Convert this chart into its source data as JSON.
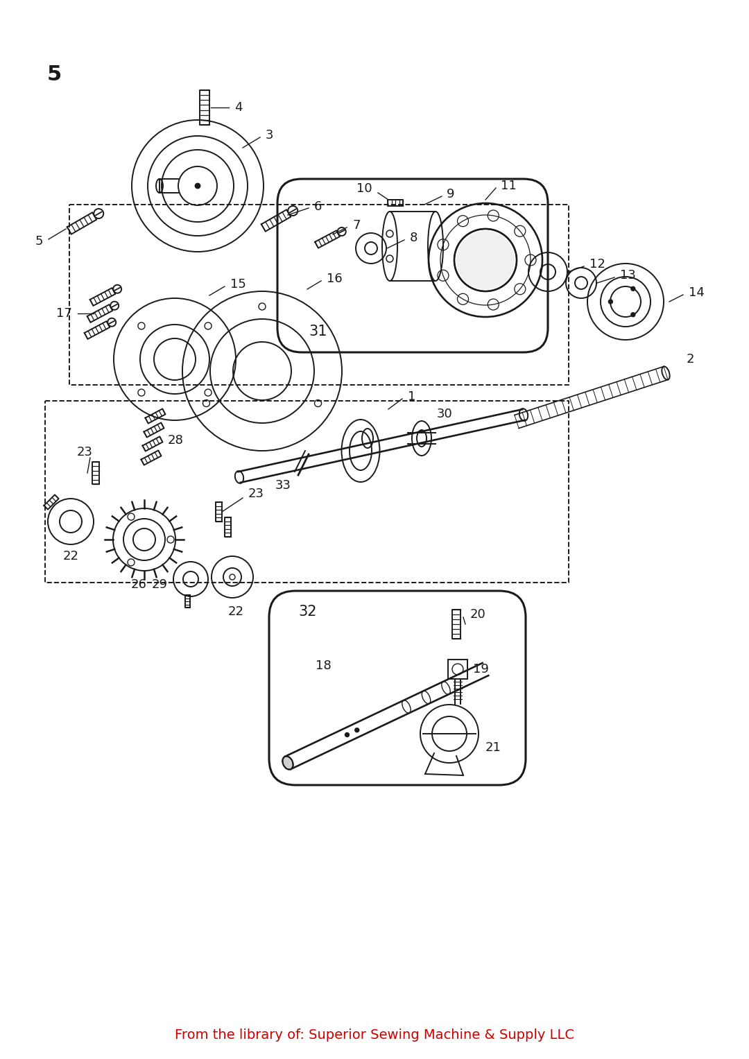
{
  "footer_text": "From the library of: Superior Sewing Machine & Supply LLC",
  "footer_color": "#cc0000",
  "background_color": "#ffffff",
  "line_color": "#1a1a1a",
  "page_num": "5",
  "figsize": [
    10.8,
    15.27
  ],
  "dpi": 100
}
